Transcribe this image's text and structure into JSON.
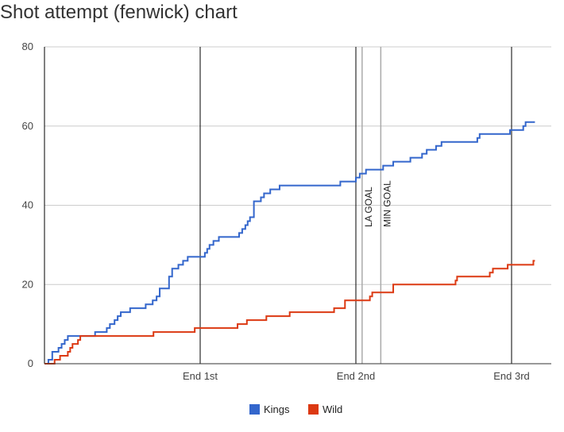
{
  "chart_data": {
    "type": "line",
    "title": "Shot attempt (fenwick) chart",
    "xlabel": "",
    "ylabel": "",
    "ylim": [
      0,
      80
    ],
    "xlim": [
      0,
      60
    ],
    "y_ticks": [
      0,
      20,
      40,
      60,
      80
    ],
    "x_ticks": [
      {
        "value": 20,
        "label": "End 1st"
      },
      {
        "value": 40,
        "label": "End 2nd"
      },
      {
        "value": 60,
        "label": "End 3rd"
      }
    ],
    "period_lines": [
      0,
      20,
      40,
      60
    ],
    "goal_lines": [
      {
        "value": 40.8,
        "label": "LA GOAL"
      },
      {
        "value": 43.2,
        "label": "MIN GOAL"
      }
    ],
    "grid": true,
    "legend": "bottom",
    "series": [
      {
        "name": "Kings",
        "color": "#3366cc",
        "points": [
          [
            0,
            0
          ],
          [
            0.5,
            1
          ],
          [
            1,
            3
          ],
          [
            1.8,
            4
          ],
          [
            2.2,
            5
          ],
          [
            2.6,
            6
          ],
          [
            3,
            7
          ],
          [
            6.5,
            8
          ],
          [
            8,
            9
          ],
          [
            8.4,
            10
          ],
          [
            9,
            11
          ],
          [
            9.4,
            12
          ],
          [
            9.8,
            13
          ],
          [
            11,
            14
          ],
          [
            13,
            15
          ],
          [
            13.9,
            16
          ],
          [
            14.4,
            17
          ],
          [
            14.8,
            19
          ],
          [
            16,
            22
          ],
          [
            16.4,
            24
          ],
          [
            17.2,
            25
          ],
          [
            17.8,
            26
          ],
          [
            18.4,
            27
          ],
          [
            20.6,
            28
          ],
          [
            20.9,
            29
          ],
          [
            21.2,
            30
          ],
          [
            21.7,
            31
          ],
          [
            22.4,
            32
          ],
          [
            25,
            33
          ],
          [
            25.4,
            34
          ],
          [
            25.8,
            35
          ],
          [
            26.1,
            36
          ],
          [
            26.4,
            37
          ],
          [
            26.9,
            41
          ],
          [
            27.8,
            42
          ],
          [
            28.2,
            43
          ],
          [
            29,
            44
          ],
          [
            30.2,
            45
          ],
          [
            38,
            46
          ],
          [
            40,
            47
          ],
          [
            40.5,
            48
          ],
          [
            41.3,
            49
          ],
          [
            43.5,
            50
          ],
          [
            44.8,
            51
          ],
          [
            47,
            52
          ],
          [
            48.5,
            53
          ],
          [
            49.1,
            54
          ],
          [
            50.3,
            55
          ],
          [
            51,
            56
          ],
          [
            55.6,
            57
          ],
          [
            55.9,
            58
          ],
          [
            59.8,
            59
          ],
          [
            61.5,
            60
          ],
          [
            61.8,
            61
          ],
          [
            63,
            61
          ]
        ]
      },
      {
        "name": "Wild",
        "color": "#dc3912",
        "points": [
          [
            0,
            0
          ],
          [
            1.3,
            1
          ],
          [
            2,
            2
          ],
          [
            3,
            3
          ],
          [
            3.3,
            4
          ],
          [
            3.6,
            5
          ],
          [
            4.3,
            6
          ],
          [
            4.6,
            7
          ],
          [
            14,
            8
          ],
          [
            19.3,
            9
          ],
          [
            24.8,
            10
          ],
          [
            26,
            11
          ],
          [
            28.5,
            12
          ],
          [
            31.5,
            13
          ],
          [
            37.2,
            14
          ],
          [
            38.6,
            16
          ],
          [
            41.8,
            17
          ],
          [
            42.1,
            18
          ],
          [
            44.8,
            20
          ],
          [
            52.8,
            21
          ],
          [
            53,
            22
          ],
          [
            57.2,
            23
          ],
          [
            57.6,
            24
          ],
          [
            59.5,
            25
          ],
          [
            62.8,
            26
          ],
          [
            63,
            26
          ]
        ]
      }
    ]
  }
}
